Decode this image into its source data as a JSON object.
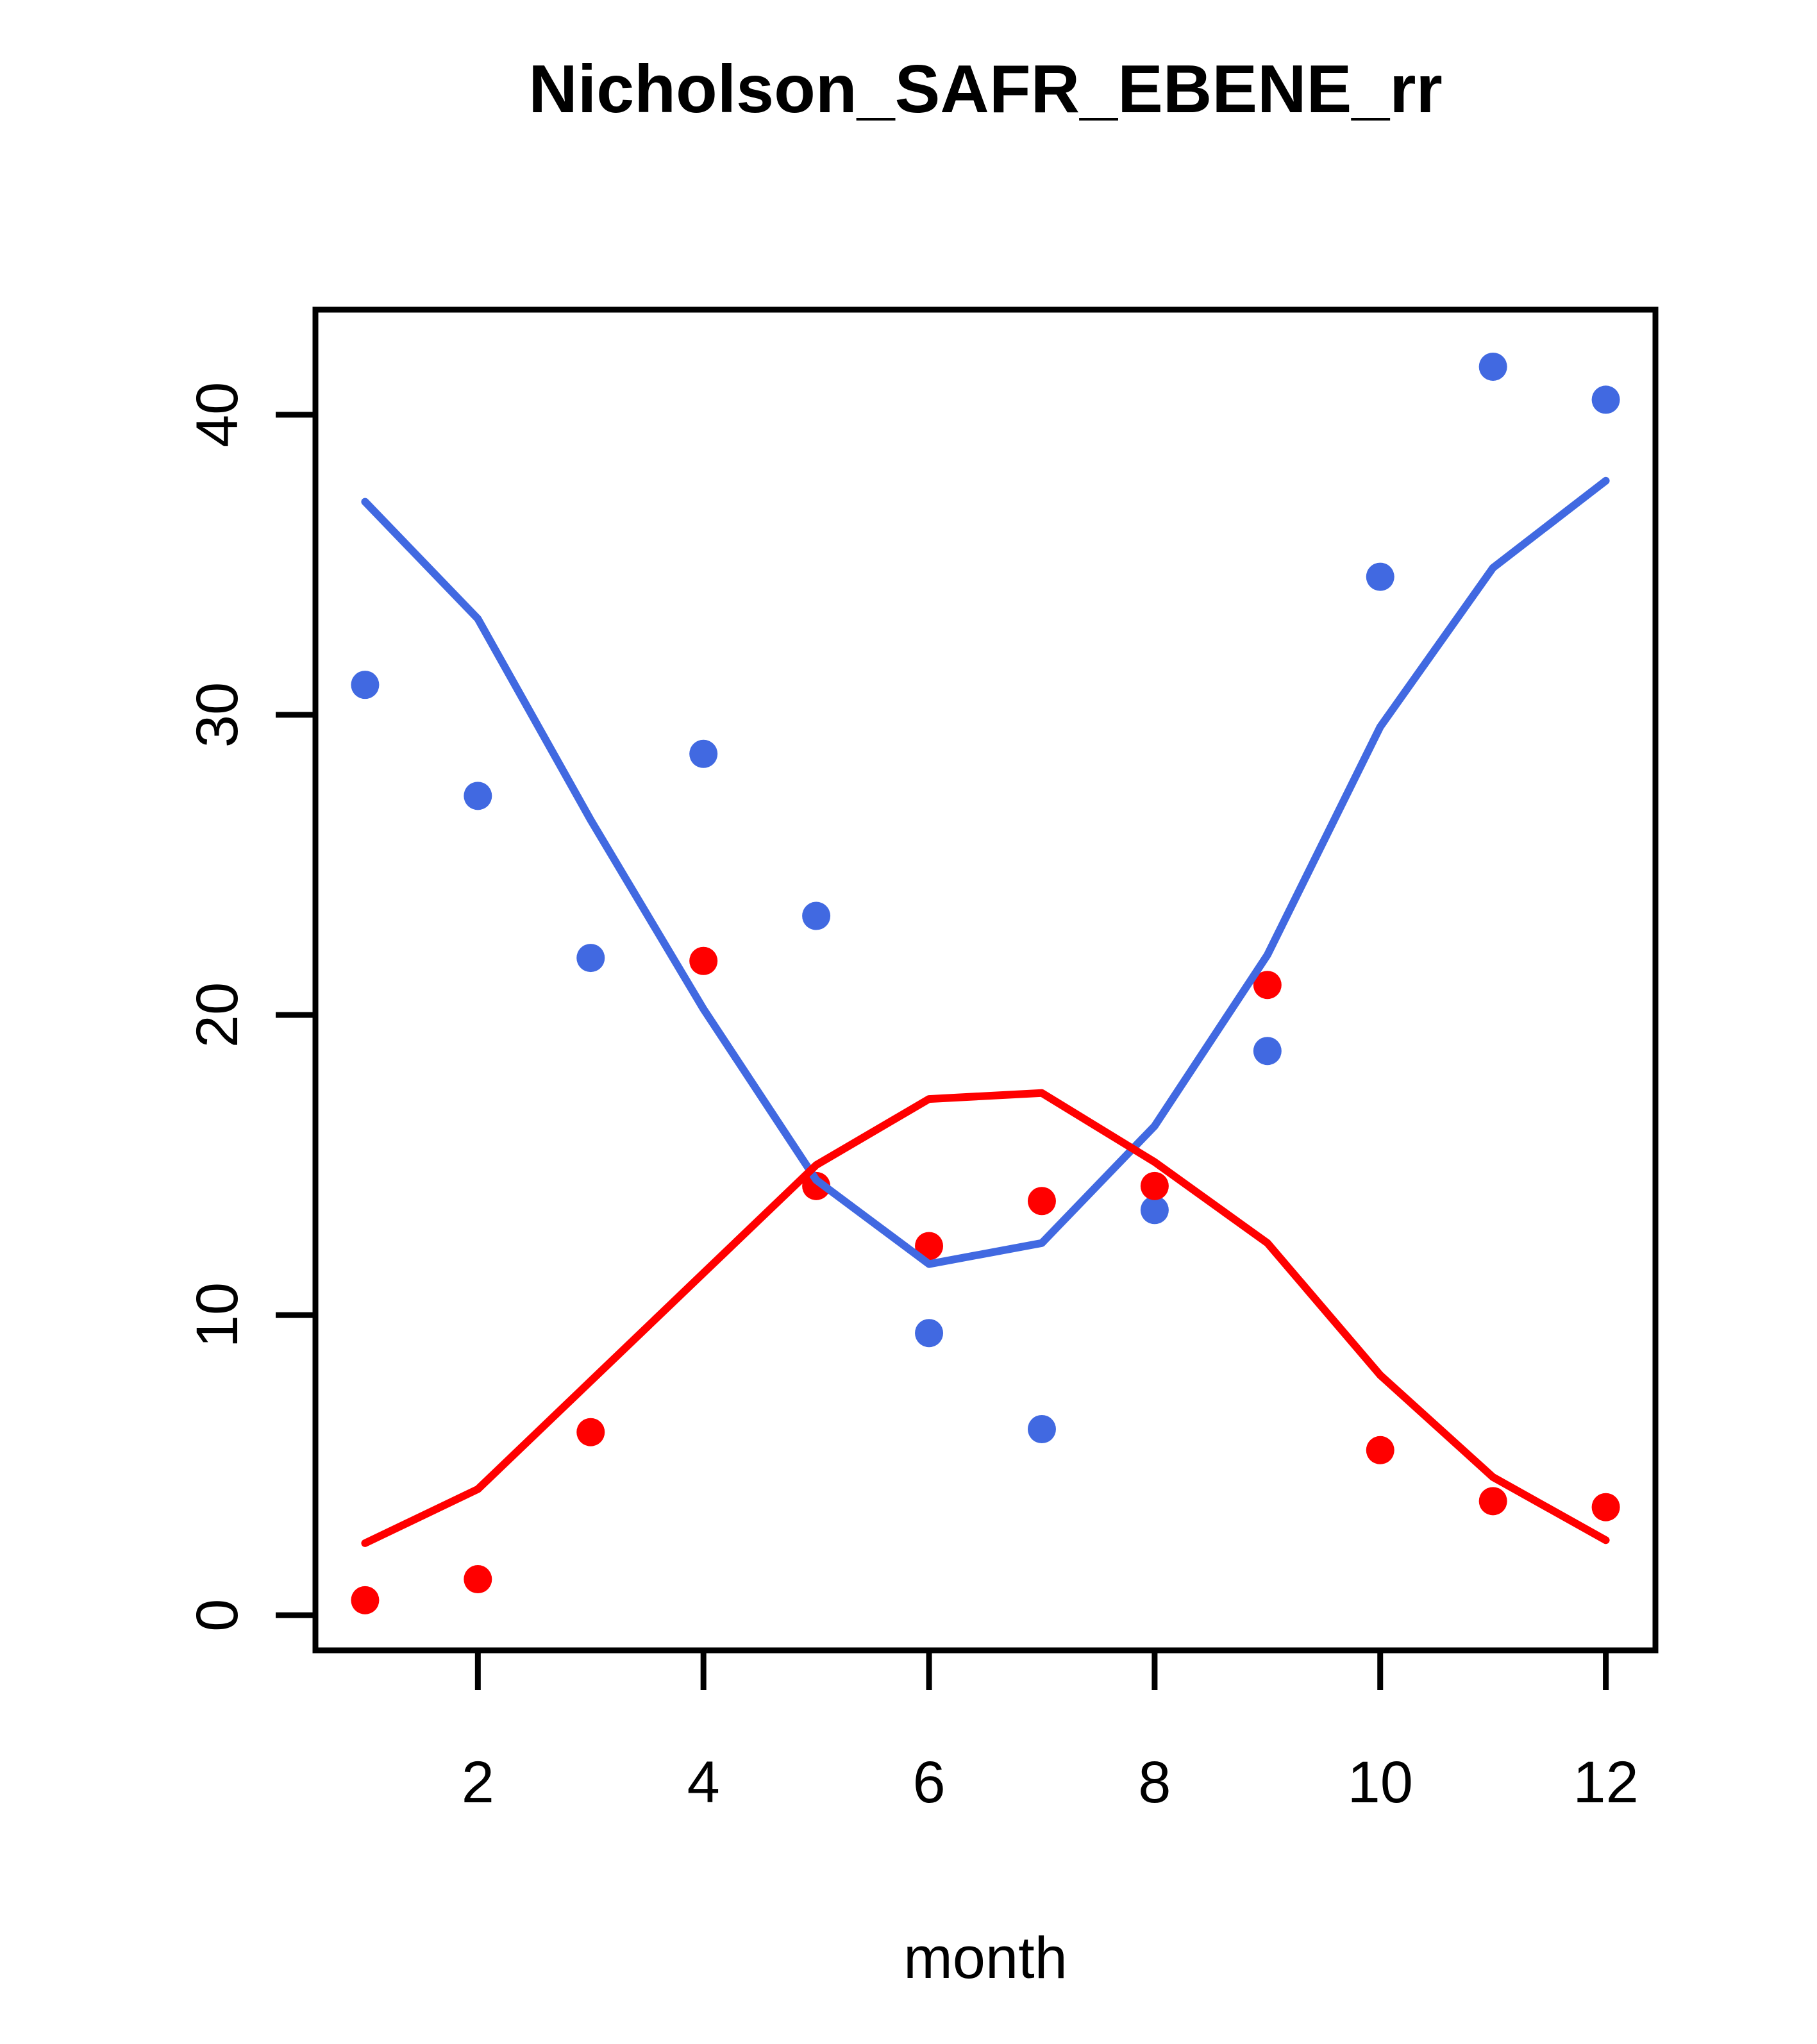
{
  "figure": {
    "title": "Nicholson_SAFR_EBENE_rr",
    "x_axis_label": "month"
  },
  "chart_data": {
    "type": "scatter",
    "title": "Nicholson_SAFR_EBENE_rr",
    "xlabel": "month",
    "ylabel": "",
    "x": [
      1,
      2,
      3,
      4,
      5,
      6,
      7,
      8,
      9,
      10,
      11,
      12
    ],
    "x_ticks": [
      2,
      4,
      6,
      8,
      10,
      12
    ],
    "y_ticks": [
      0,
      10,
      20,
      30,
      40
    ],
    "xlim": [
      0.56,
      12.44
    ],
    "ylim": [
      -1.17,
      43.5
    ],
    "grid": false,
    "legend_position": "none",
    "colors": {
      "blue": "#4169E1",
      "red": "#FF0000",
      "axis": "#000000"
    },
    "series": [
      {
        "name": "blue-observations",
        "kind": "points",
        "color": "#4169E1",
        "values": [
          31.0,
          27.3,
          21.9,
          28.7,
          23.3,
          9.4,
          6.2,
          13.5,
          18.8,
          34.6,
          41.6,
          40.5
        ]
      },
      {
        "name": "red-observations",
        "kind": "points",
        "color": "#FF0000",
        "values": [
          0.5,
          1.2,
          6.1,
          21.8,
          14.3,
          12.3,
          13.8,
          14.3,
          21.0,
          5.5,
          3.8,
          3.6
        ]
      },
      {
        "name": "blue-fitted-line",
        "kind": "line",
        "color": "#4169E1",
        "values": [
          37.1,
          33.2,
          26.5,
          20.2,
          14.5,
          11.7,
          12.4,
          16.3,
          22.0,
          29.6,
          34.9,
          37.8
        ]
      },
      {
        "name": "red-fitted-line",
        "kind": "line",
        "color": "#FF0000",
        "values": [
          2.4,
          4.2,
          7.8,
          11.4,
          15.0,
          17.2,
          17.4,
          15.1,
          12.4,
          8.0,
          4.6,
          2.5
        ]
      }
    ]
  }
}
